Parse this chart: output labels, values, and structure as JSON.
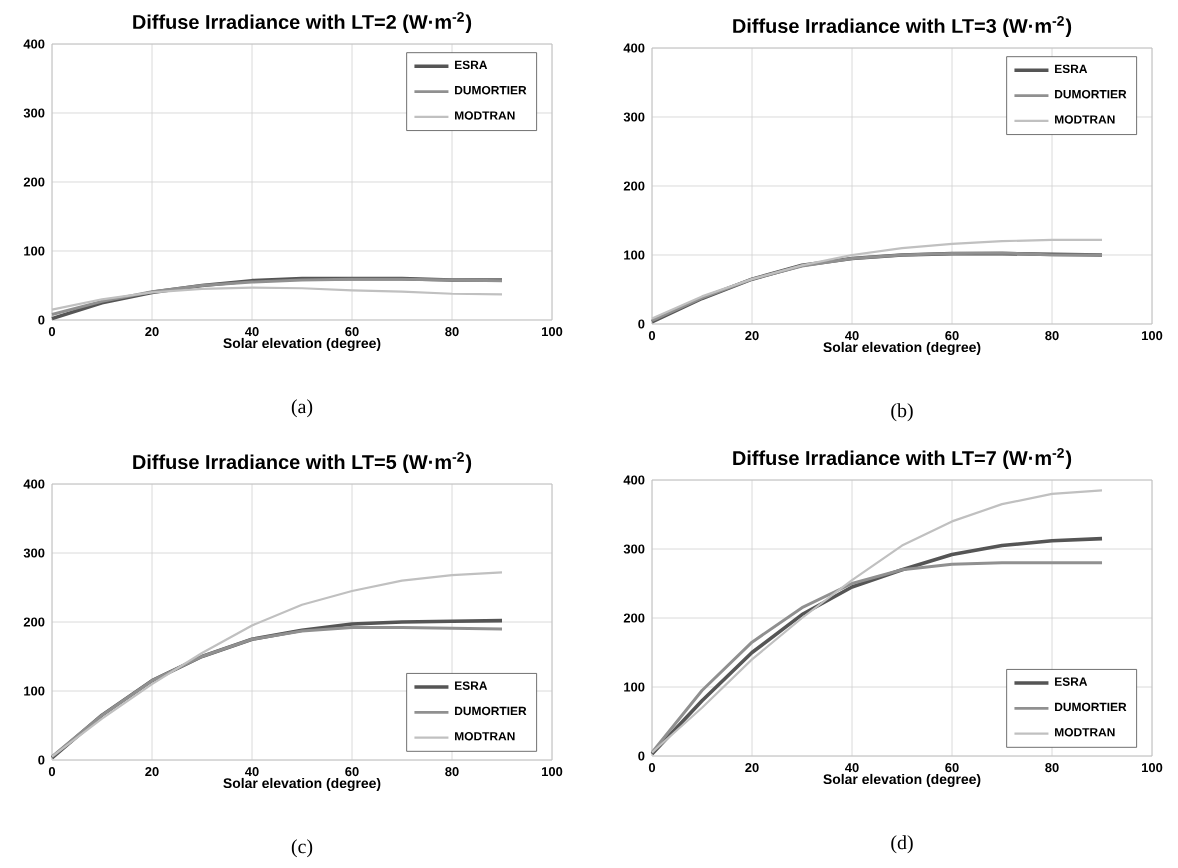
{
  "chart_data": [
    {
      "type": "line",
      "title": "Diffuse Irradiance with LT=2 (W·m$^{-2}$)",
      "xlabel": "Solar elevation (degree)",
      "x": [
        0,
        10,
        20,
        30,
        40,
        50,
        60,
        70,
        80,
        90
      ],
      "xlim": [
        0,
        100
      ],
      "ylim": [
        0,
        400
      ],
      "xticks": [
        0,
        20,
        40,
        60,
        80,
        100
      ],
      "yticks": [
        0,
        100,
        200,
        300,
        400
      ],
      "grid": true,
      "legend": "top right",
      "annotations": [
        "(a)"
      ],
      "series": [
        {
          "name": "ESRA",
          "color": "#555555",
          "values": [
            2,
            25,
            40,
            50,
            57,
            60,
            60,
            60,
            58,
            58
          ]
        },
        {
          "name": "DUMORTIER",
          "color": "#909090",
          "values": [
            8,
            27,
            41,
            50,
            55,
            58,
            59,
            59,
            58,
            57
          ]
        },
        {
          "name": "MODTRAN",
          "color": "#c0c0c0",
          "values": [
            15,
            30,
            40,
            45,
            47,
            46,
            43,
            41,
            38,
            37
          ]
        }
      ]
    },
    {
      "type": "line",
      "title": "Diffuse Irradiance with LT=3 (W·m$^{-2}$)",
      "xlabel": "Solar elevation (degree)",
      "x": [
        0,
        10,
        20,
        30,
        40,
        50,
        60,
        70,
        80,
        90
      ],
      "xlim": [
        0,
        100
      ],
      "ylim": [
        0,
        400
      ],
      "xticks": [
        0,
        20,
        40,
        60,
        80,
        100
      ],
      "yticks": [
        0,
        100,
        200,
        300,
        400
      ],
      "grid": true,
      "legend": "top right",
      "annotations": [
        "(b)"
      ],
      "series": [
        {
          "name": "ESRA",
          "color": "#555555",
          "values": [
            3,
            37,
            65,
            85,
            95,
            100,
            102,
            102,
            101,
            100
          ]
        },
        {
          "name": "DUMORTIER",
          "color": "#909090",
          "values": [
            5,
            38,
            65,
            84,
            95,
            100,
            102,
            103,
            100,
            100
          ]
        },
        {
          "name": "MODTRAN",
          "color": "#c0c0c0",
          "values": [
            8,
            40,
            65,
            85,
            100,
            110,
            116,
            120,
            122,
            122
          ]
        }
      ]
    },
    {
      "type": "line",
      "title": "Diffuse Irradiance with LT=5 (W·m$^{-2}$)",
      "xlabel": "Solar elevation (degree)",
      "x": [
        0,
        10,
        20,
        30,
        40,
        50,
        60,
        70,
        80,
        90
      ],
      "xlim": [
        0,
        100
      ],
      "ylim": [
        0,
        400
      ],
      "xticks": [
        0,
        20,
        40,
        60,
        80,
        100
      ],
      "yticks": [
        0,
        100,
        200,
        300,
        400
      ],
      "grid": true,
      "legend": "bottom right",
      "annotations": [
        "(c)"
      ],
      "series": [
        {
          "name": "ESRA",
          "color": "#555555",
          "values": [
            3,
            65,
            115,
            150,
            175,
            188,
            197,
            200,
            201,
            202
          ]
        },
        {
          "name": "DUMORTIER",
          "color": "#909090",
          "values": [
            5,
            65,
            115,
            150,
            175,
            187,
            192,
            192,
            191,
            190
          ]
        },
        {
          "name": "MODTRAN",
          "color": "#c0c0c0",
          "values": [
            5,
            60,
            110,
            155,
            195,
            225,
            245,
            260,
            268,
            272
          ]
        }
      ]
    },
    {
      "type": "line",
      "title": "Diffuse Irradiance with LT=7 (W·m$^{-2}$)",
      "xlabel": "Solar elevation (degree)",
      "x": [
        0,
        10,
        20,
        30,
        40,
        50,
        60,
        70,
        80,
        90
      ],
      "xlim": [
        0,
        100
      ],
      "ylim": [
        0,
        400
      ],
      "xticks": [
        0,
        20,
        40,
        60,
        80,
        100
      ],
      "yticks": [
        0,
        100,
        200,
        300,
        400
      ],
      "grid": true,
      "legend": "bottom right",
      "annotations": [
        "(d)"
      ],
      "series": [
        {
          "name": "ESRA",
          "color": "#555555",
          "values": [
            3,
            80,
            150,
            205,
            245,
            270,
            292,
            305,
            312,
            315
          ]
        },
        {
          "name": "DUMORTIER",
          "color": "#909090",
          "values": [
            5,
            95,
            165,
            215,
            250,
            270,
            278,
            280,
            280,
            280
          ]
        },
        {
          "name": "MODTRAN",
          "color": "#c0c0c0",
          "values": [
            5,
            70,
            140,
            200,
            255,
            305,
            340,
            365,
            380,
            385
          ]
        }
      ]
    }
  ]
}
